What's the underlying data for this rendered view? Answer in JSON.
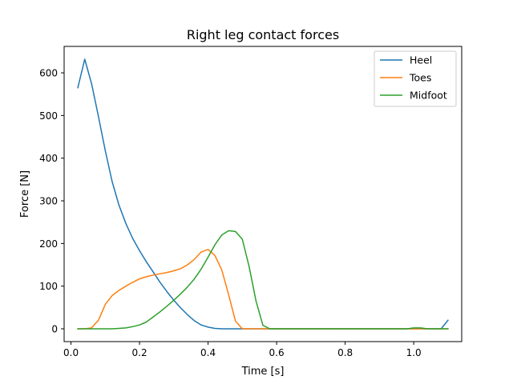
{
  "chart_data": {
    "type": "line",
    "title": "Right leg contact forces",
    "xlabel": "Time [s]",
    "ylabel": "Force [N]",
    "xlim": [
      -0.02,
      1.14
    ],
    "ylim": [
      -30,
      662
    ],
    "xticks": [
      0.0,
      0.2,
      0.4,
      0.6,
      0.8,
      1.0
    ],
    "xtick_labels": [
      "0.0",
      "0.2",
      "0.4",
      "0.6",
      "0.8",
      "1.0"
    ],
    "yticks": [
      0,
      100,
      200,
      300,
      400,
      500,
      600
    ],
    "ytick_labels": [
      "0",
      "100",
      "200",
      "300",
      "400",
      "500",
      "600"
    ],
    "grid": false,
    "legend_position": "top-right",
    "x": [
      0.02,
      0.04,
      0.06,
      0.08,
      0.1,
      0.12,
      0.14,
      0.16,
      0.18,
      0.2,
      0.22,
      0.24,
      0.26,
      0.28,
      0.3,
      0.32,
      0.34,
      0.36,
      0.38,
      0.4,
      0.42,
      0.44,
      0.46,
      0.48,
      0.5,
      0.52,
      0.54,
      0.56,
      0.58,
      0.6,
      0.62,
      0.64,
      0.66,
      0.68,
      0.7,
      0.72,
      0.74,
      0.76,
      0.78,
      0.8,
      0.82,
      0.84,
      0.86,
      0.88,
      0.9,
      0.92,
      0.94,
      0.96,
      0.98,
      1.0,
      1.02,
      1.04,
      1.06,
      1.08,
      1.1
    ],
    "series": [
      {
        "name": "Heel",
        "color": "#1f77b4",
        "values": [
          565,
          632,
          575,
          498,
          418,
          345,
          290,
          247,
          212,
          183,
          157,
          133,
          109,
          87,
          67,
          49,
          33,
          19,
          9,
          4,
          1,
          0,
          0,
          0,
          0,
          0,
          0,
          0,
          0,
          0,
          0,
          0,
          0,
          0,
          0,
          0,
          0,
          0,
          0,
          0,
          0,
          0,
          0,
          0,
          0,
          0,
          0,
          0,
          0,
          0,
          0,
          0,
          0,
          0,
          20
        ]
      },
      {
        "name": "Toes",
        "color": "#ff7f0e",
        "values": [
          0,
          0,
          2,
          20,
          57,
          78,
          90,
          100,
          109,
          117,
          122,
          126,
          129,
          132,
          136,
          141,
          150,
          163,
          180,
          186,
          172,
          138,
          80,
          18,
          0,
          0,
          0,
          0,
          0,
          0,
          0,
          0,
          0,
          0,
          0,
          0,
          0,
          0,
          0,
          0,
          0,
          0,
          0,
          0,
          0,
          0,
          0,
          0,
          0,
          0,
          0,
          0,
          0,
          0,
          0
        ]
      },
      {
        "name": "Midfoot",
        "color": "#2ca02c",
        "values": [
          0,
          0,
          0,
          0,
          0,
          0,
          1,
          2,
          5,
          9,
          16,
          28,
          40,
          53,
          67,
          82,
          98,
          117,
          140,
          168,
          197,
          220,
          230,
          228,
          210,
          145,
          65,
          8,
          0,
          0,
          0,
          0,
          0,
          0,
          0,
          0,
          0,
          0,
          0,
          0,
          0,
          0,
          0,
          0,
          0,
          0,
          0,
          0,
          0,
          2,
          2,
          0,
          0,
          0,
          0
        ]
      }
    ]
  }
}
